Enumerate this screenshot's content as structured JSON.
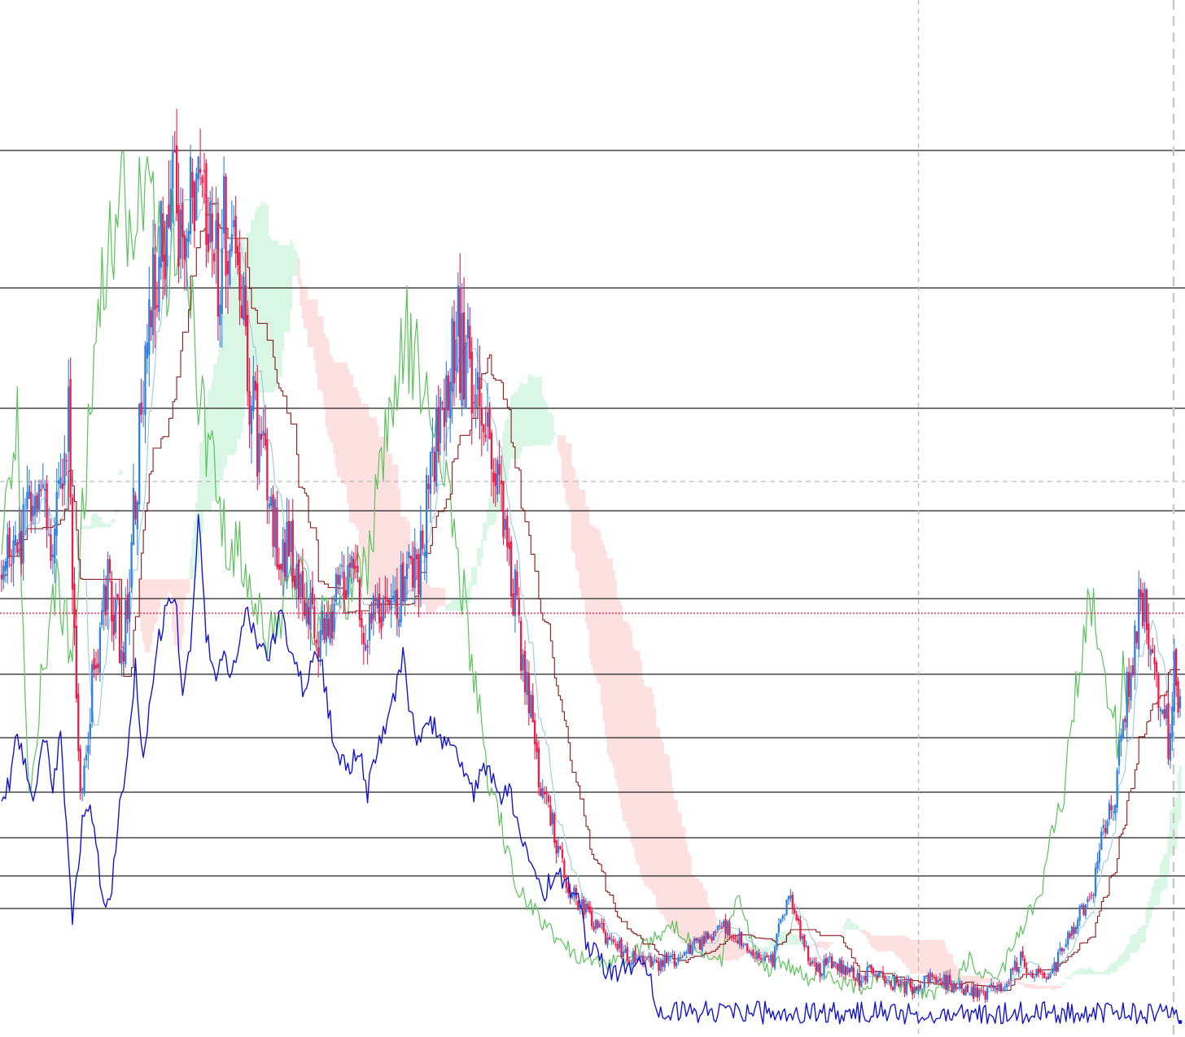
{
  "chart_data": {
    "type": "candlestick",
    "title": "",
    "xlabel": "",
    "ylabel": "",
    "grid": false,
    "ylim": [
      0,
      1275
    ],
    "bars": 600,
    "colors": {
      "up": "#2f80dd",
      "down": "#ee1a48",
      "kijun": "#8b1a1a",
      "tenkan": "#9cc9e0",
      "chikou": "#5cc25c",
      "kumo_bull": "#d9f7e4",
      "kumo_bear": "#fde0e0",
      "rsi": "#1414cc",
      "level": "#222222",
      "price_line": "#e0003a",
      "dashed": "#bbbbbb"
    },
    "horizontal_levels": [
      1090,
      921,
      773,
      647,
      539,
      446,
      368,
      301,
      245,
      198,
      158
    ],
    "current_price_level": 521,
    "crosshair": {
      "bar": 466,
      "price": 683
    },
    "right_marker_bar": 599,
    "price_path": [
      [
        0,
        560
      ],
      [
        6,
        600
      ],
      [
        16,
        650
      ],
      [
        26,
        620
      ],
      [
        34,
        750
      ],
      [
        37,
        510
      ],
      [
        40,
        300
      ],
      [
        46,
        430
      ],
      [
        54,
        560
      ],
      [
        62,
        470
      ],
      [
        68,
        660
      ],
      [
        73,
        850
      ],
      [
        79,
        930
      ],
      [
        83,
        1000
      ],
      [
        88,
        1090
      ],
      [
        92,
        940
      ],
      [
        98,
        1040
      ],
      [
        104,
        980
      ],
      [
        110,
        950
      ],
      [
        113,
        1000
      ],
      [
        117,
        990
      ],
      [
        122,
        900
      ],
      [
        128,
        760
      ],
      [
        133,
        700
      ],
      [
        136,
        640
      ],
      [
        141,
        620
      ],
      [
        147,
        590
      ],
      [
        156,
        520
      ],
      [
        162,
        480
      ],
      [
        170,
        545
      ],
      [
        178,
        560
      ],
      [
        186,
        500
      ],
      [
        196,
        520
      ],
      [
        206,
        550
      ],
      [
        214,
        600
      ],
      [
        218,
        700
      ],
      [
        222,
        760
      ],
      [
        227,
        820
      ],
      [
        232,
        860
      ],
      [
        240,
        800
      ],
      [
        247,
        750
      ],
      [
        252,
        700
      ],
      [
        256,
        630
      ],
      [
        260,
        560
      ],
      [
        264,
        480
      ],
      [
        267,
        420
      ],
      [
        270,
        380
      ],
      [
        274,
        310
      ],
      [
        278,
        280
      ],
      [
        281,
        250
      ],
      [
        286,
        200
      ],
      [
        292,
        170
      ],
      [
        298,
        150
      ],
      [
        305,
        130
      ],
      [
        311,
        115
      ],
      [
        318,
        100
      ],
      [
        326,
        95
      ],
      [
        334,
        90
      ],
      [
        342,
        95
      ],
      [
        351,
        110
      ],
      [
        360,
        125
      ],
      [
        368,
        135
      ],
      [
        376,
        120
      ],
      [
        383,
        100
      ],
      [
        388,
        90
      ],
      [
        392,
        95
      ],
      [
        396,
        150
      ],
      [
        400,
        170
      ],
      [
        403,
        160
      ],
      [
        406,
        120
      ],
      [
        410,
        100
      ],
      [
        414,
        80
      ],
      [
        420,
        90
      ],
      [
        428,
        85
      ],
      [
        436,
        70
      ],
      [
        442,
        80
      ],
      [
        448,
        70
      ],
      [
        456,
        65
      ],
      [
        466,
        60
      ],
      [
        472,
        75
      ],
      [
        478,
        70
      ],
      [
        482,
        65
      ],
      [
        488,
        60
      ],
      [
        492,
        55
      ],
      [
        500,
        50
      ],
      [
        504,
        70
      ],
      [
        510,
        60
      ],
      [
        516,
        90
      ],
      [
        519,
        100
      ],
      [
        521,
        85
      ],
      [
        526,
        75
      ],
      [
        534,
        80
      ],
      [
        542,
        120
      ],
      [
        548,
        150
      ],
      [
        554,
        170
      ],
      [
        560,
        250
      ],
      [
        566,
        300
      ],
      [
        571,
        400
      ],
      [
        575,
        480
      ],
      [
        579,
        530
      ],
      [
        583,
        500
      ],
      [
        587,
        430
      ],
      [
        591,
        400
      ],
      [
        594,
        350
      ],
      [
        596,
        450
      ],
      [
        598,
        430
      ],
      [
        599,
        410
      ]
    ],
    "rsi_path": [
      [
        0,
        300
      ],
      [
        4,
        310
      ],
      [
        8,
        370
      ],
      [
        12,
        330
      ],
      [
        16,
        290
      ],
      [
        22,
        370
      ],
      [
        26,
        310
      ],
      [
        30,
        370
      ],
      [
        36,
        145
      ],
      [
        38,
        200
      ],
      [
        42,
        280
      ],
      [
        46,
        270
      ],
      [
        52,
        160
      ],
      [
        56,
        180
      ],
      [
        60,
        285
      ],
      [
        64,
        350
      ],
      [
        68,
        460
      ],
      [
        72,
        340
      ],
      [
        78,
        470
      ],
      [
        84,
        530
      ],
      [
        88,
        550
      ],
      [
        92,
        420
      ],
      [
        96,
        480
      ],
      [
        100,
        640
      ],
      [
        104,
        495
      ],
      [
        108,
        445
      ],
      [
        112,
        470
      ],
      [
        116,
        445
      ],
      [
        120,
        480
      ],
      [
        124,
        530
      ],
      [
        130,
        490
      ],
      [
        136,
        470
      ],
      [
        142,
        520
      ],
      [
        148,
        465
      ],
      [
        154,
        425
      ],
      [
        158,
        470
      ],
      [
        162,
        470
      ],
      [
        170,
        340
      ],
      [
        176,
        330
      ],
      [
        182,
        350
      ],
      [
        186,
        300
      ],
      [
        190,
        350
      ],
      [
        196,
        380
      ],
      [
        204,
        470
      ],
      [
        208,
        395
      ],
      [
        212,
        365
      ],
      [
        218,
        390
      ],
      [
        222,
        370
      ],
      [
        230,
        345
      ],
      [
        236,
        330
      ],
      [
        240,
        295
      ],
      [
        244,
        325
      ],
      [
        248,
        330
      ],
      [
        254,
        290
      ],
      [
        258,
        305
      ],
      [
        262,
        270
      ],
      [
        266,
        240
      ],
      [
        270,
        205
      ],
      [
        276,
        175
      ],
      [
        280,
        200
      ],
      [
        286,
        195
      ],
      [
        290,
        175
      ],
      [
        292,
        180
      ],
      [
        294,
        155
      ],
      [
        298,
        110
      ],
      [
        302,
        110
      ],
      [
        306,
        85
      ],
      [
        310,
        80
      ],
      [
        314,
        80
      ],
      [
        318,
        85
      ],
      [
        322,
        90
      ],
      [
        330,
        75
      ],
      [
        332,
        40
      ],
      [
        336,
        30
      ],
      [
        338,
        30
      ]
    ]
  }
}
